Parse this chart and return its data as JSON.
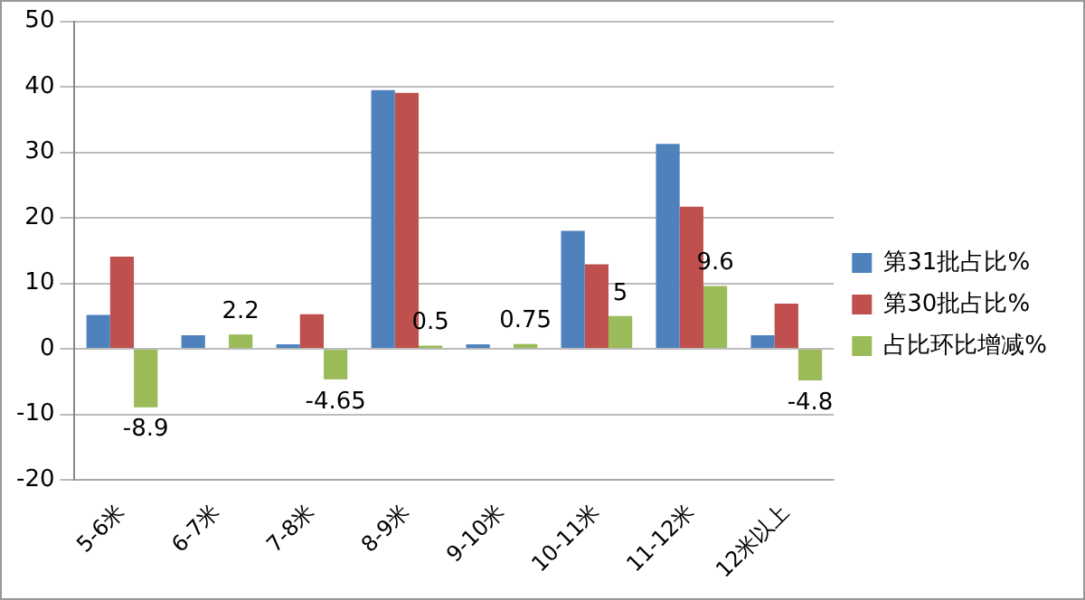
{
  "chart_data": {
    "type": "bar",
    "categories": [
      "5-6米",
      "6-7米",
      "7-8米",
      "8-9米",
      "9-10米",
      "10-11米",
      "11-12米",
      "12米以上"
    ],
    "series": [
      {
        "name": "第31批占比%",
        "color": "#4f81bd",
        "values": [
          5.2,
          2.1,
          0.7,
          39.5,
          0.7,
          18,
          31.3,
          2.1
        ]
      },
      {
        "name": "第30批占比%",
        "color": "#c0504d",
        "values": [
          14.1,
          null,
          5.3,
          39.1,
          null,
          12.9,
          21.7,
          6.9
        ]
      },
      {
        "name": "占比环比增减%",
        "color": "#9bbb59",
        "values": [
          -8.9,
          2.2,
          -4.65,
          0.5,
          0.75,
          5,
          9.6,
          -4.8
        ],
        "value_labels": [
          "-8.9",
          "2.2",
          "-4.65",
          "0.5",
          "0.75",
          "5",
          "9.6",
          "-4.8"
        ]
      }
    ],
    "ylim": [
      -20,
      50
    ],
    "yticks": [
      -20,
      -10,
      0,
      10,
      20,
      30,
      40,
      50
    ],
    "grid": "y",
    "legend": "right"
  }
}
